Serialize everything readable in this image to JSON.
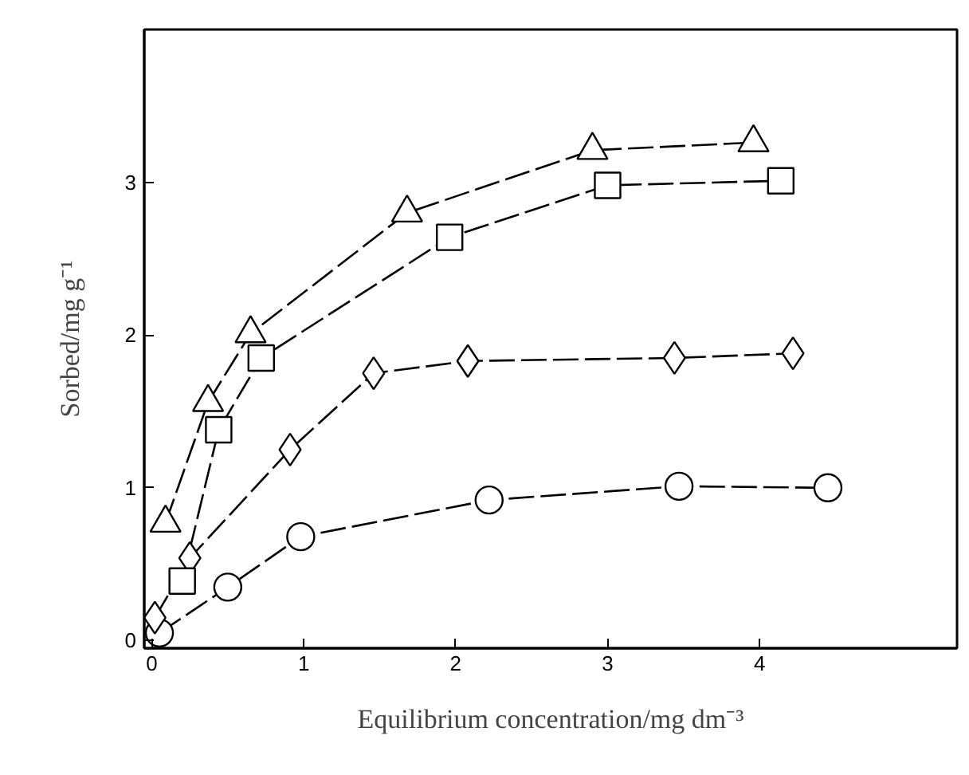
{
  "chart_data": {
    "type": "line",
    "xlabel": "Equilibrium concentration/mg dm⁻³",
    "ylabel": "Sorbed/mg g⁻¹",
    "xlim": [
      -0.05,
      5.3
    ],
    "ylim": [
      -0.05,
      4.0
    ],
    "xticks": [
      0,
      1,
      2,
      3,
      4
    ],
    "yticks": [
      0,
      1,
      2,
      3
    ],
    "grid": false,
    "line_style": "dashed",
    "series": [
      {
        "color": "#000000",
        "marker": "triangle",
        "x": [
          0.09,
          0.37,
          0.65,
          1.68,
          2.9,
          3.96
        ],
        "values": [
          0.77,
          1.56,
          2.01,
          2.8,
          3.21,
          3.26
        ]
      },
      {
        "color": "#000000",
        "marker": "square",
        "x": [
          0.2,
          0.44,
          0.72,
          1.96,
          3.0,
          4.14
        ],
        "values": [
          0.39,
          1.38,
          1.85,
          2.64,
          2.98,
          3.01
        ]
      },
      {
        "color": "#000000",
        "marker": "diamond",
        "x": [
          0.02,
          0.25,
          0.91,
          1.46,
          2.08,
          3.44,
          4.22
        ],
        "values": [
          0.15,
          0.54,
          1.25,
          1.75,
          1.83,
          1.85,
          1.88
        ]
      },
      {
        "color": "#000000",
        "marker": "circle",
        "x": [
          0.05,
          0.5,
          0.98,
          2.22,
          3.47,
          4.45
        ],
        "values": [
          0.05,
          0.35,
          0.68,
          0.92,
          1.01,
          1.0
        ]
      }
    ]
  }
}
